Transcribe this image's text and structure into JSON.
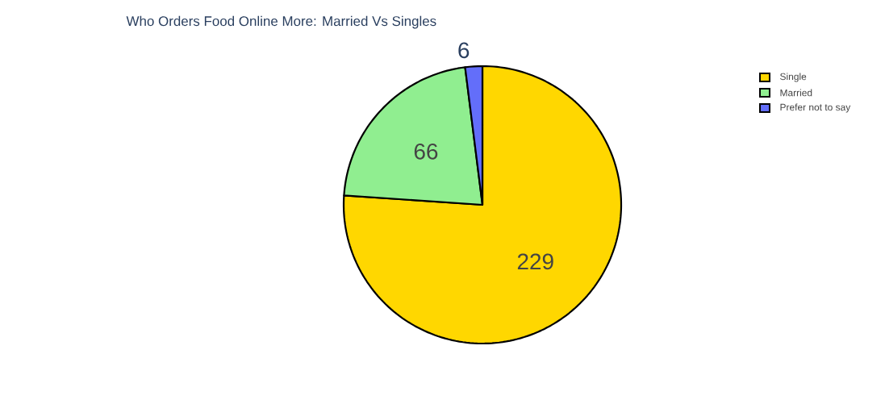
{
  "chart_data": {
    "type": "pie",
    "title": "Who Orders Food Online More: Married Vs Singles",
    "categories": [
      "Single",
      "Married",
      "Prefer not to say"
    ],
    "values": [
      229,
      66,
      6
    ],
    "colors": [
      "#ffd700",
      "#90ee90",
      "#636efa"
    ],
    "data_labels": true,
    "legend": "top right"
  }
}
